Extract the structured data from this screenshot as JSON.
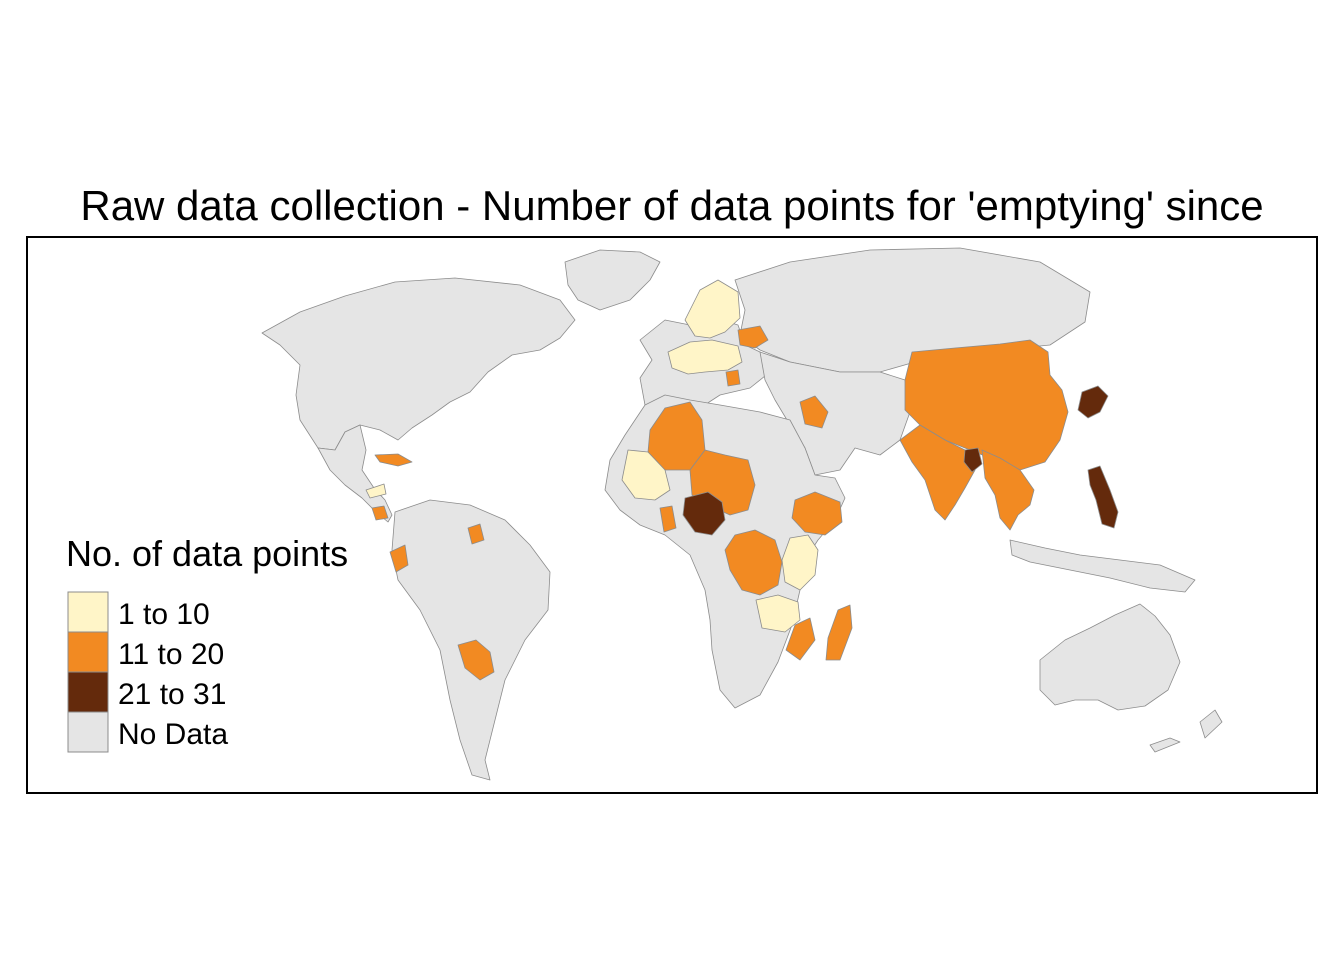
{
  "title": "Raw data collection - Number of data points for 'emptying' since",
  "colors": {
    "none": "#e5e5e5",
    "low": "#fff5c8",
    "mid": "#f28a22",
    "high": "#642a0c",
    "border": "#8c8c8c",
    "frame": "#000000"
  },
  "legend": {
    "title": "No. of data points",
    "items": [
      {
        "label": "1 to 10",
        "class": "low"
      },
      {
        "label": "11 to 20",
        "class": "mid"
      },
      {
        "label": "21 to 31",
        "class": "high"
      },
      {
        "label": "No Data",
        "class": "none"
      }
    ]
  },
  "regions": [
    {
      "name": "North America",
      "class": "none"
    },
    {
      "name": "Greenland",
      "class": "none"
    },
    {
      "name": "Mexico and Central America",
      "class": "none"
    },
    {
      "name": "South America",
      "class": "none"
    },
    {
      "name": "Paraguay",
      "class": "mid"
    },
    {
      "name": "Ecuador",
      "class": "mid"
    },
    {
      "name": "Suriname",
      "class": "mid"
    },
    {
      "name": "Honduras",
      "class": "low"
    },
    {
      "name": "Cuba",
      "class": "mid"
    },
    {
      "name": "Costa Rica",
      "class": "mid"
    },
    {
      "name": "Europe",
      "class": "none"
    },
    {
      "name": "Nordic countries",
      "class": "low"
    },
    {
      "name": "Central Europe",
      "class": "low"
    },
    {
      "name": "Ukraine",
      "class": "mid"
    },
    {
      "name": "Serbia",
      "class": "mid"
    },
    {
      "name": "Russia",
      "class": "none"
    },
    {
      "name": "Central and West Asia",
      "class": "none"
    },
    {
      "name": "Iraq",
      "class": "mid"
    },
    {
      "name": "China and Mongolia",
      "class": "mid"
    },
    {
      "name": "South Asia",
      "class": "mid"
    },
    {
      "name": "Bangladesh",
      "class": "high"
    },
    {
      "name": "Myanmar, Thailand, Vietnam",
      "class": "mid"
    },
    {
      "name": "Japan",
      "class": "high"
    },
    {
      "name": "Philippines",
      "class": "high"
    },
    {
      "name": "Indonesia",
      "class": "none"
    },
    {
      "name": "Africa",
      "class": "none"
    },
    {
      "name": "Algeria",
      "class": "mid"
    },
    {
      "name": "Mali",
      "class": "low"
    },
    {
      "name": "Niger and Chad",
      "class": "mid"
    },
    {
      "name": "Nigeria",
      "class": "high"
    },
    {
      "name": "Ghana",
      "class": "mid"
    },
    {
      "name": "DR Congo",
      "class": "mid"
    },
    {
      "name": "Ethiopia",
      "class": "mid"
    },
    {
      "name": "Kenya and Tanzania",
      "class": "low"
    },
    {
      "name": "Zambia and Malawi",
      "class": "low"
    },
    {
      "name": "Mozambique",
      "class": "mid"
    },
    {
      "name": "Madagascar",
      "class": "mid"
    },
    {
      "name": "Australia",
      "class": "none"
    },
    {
      "name": "New Zealand",
      "class": "none"
    }
  ]
}
